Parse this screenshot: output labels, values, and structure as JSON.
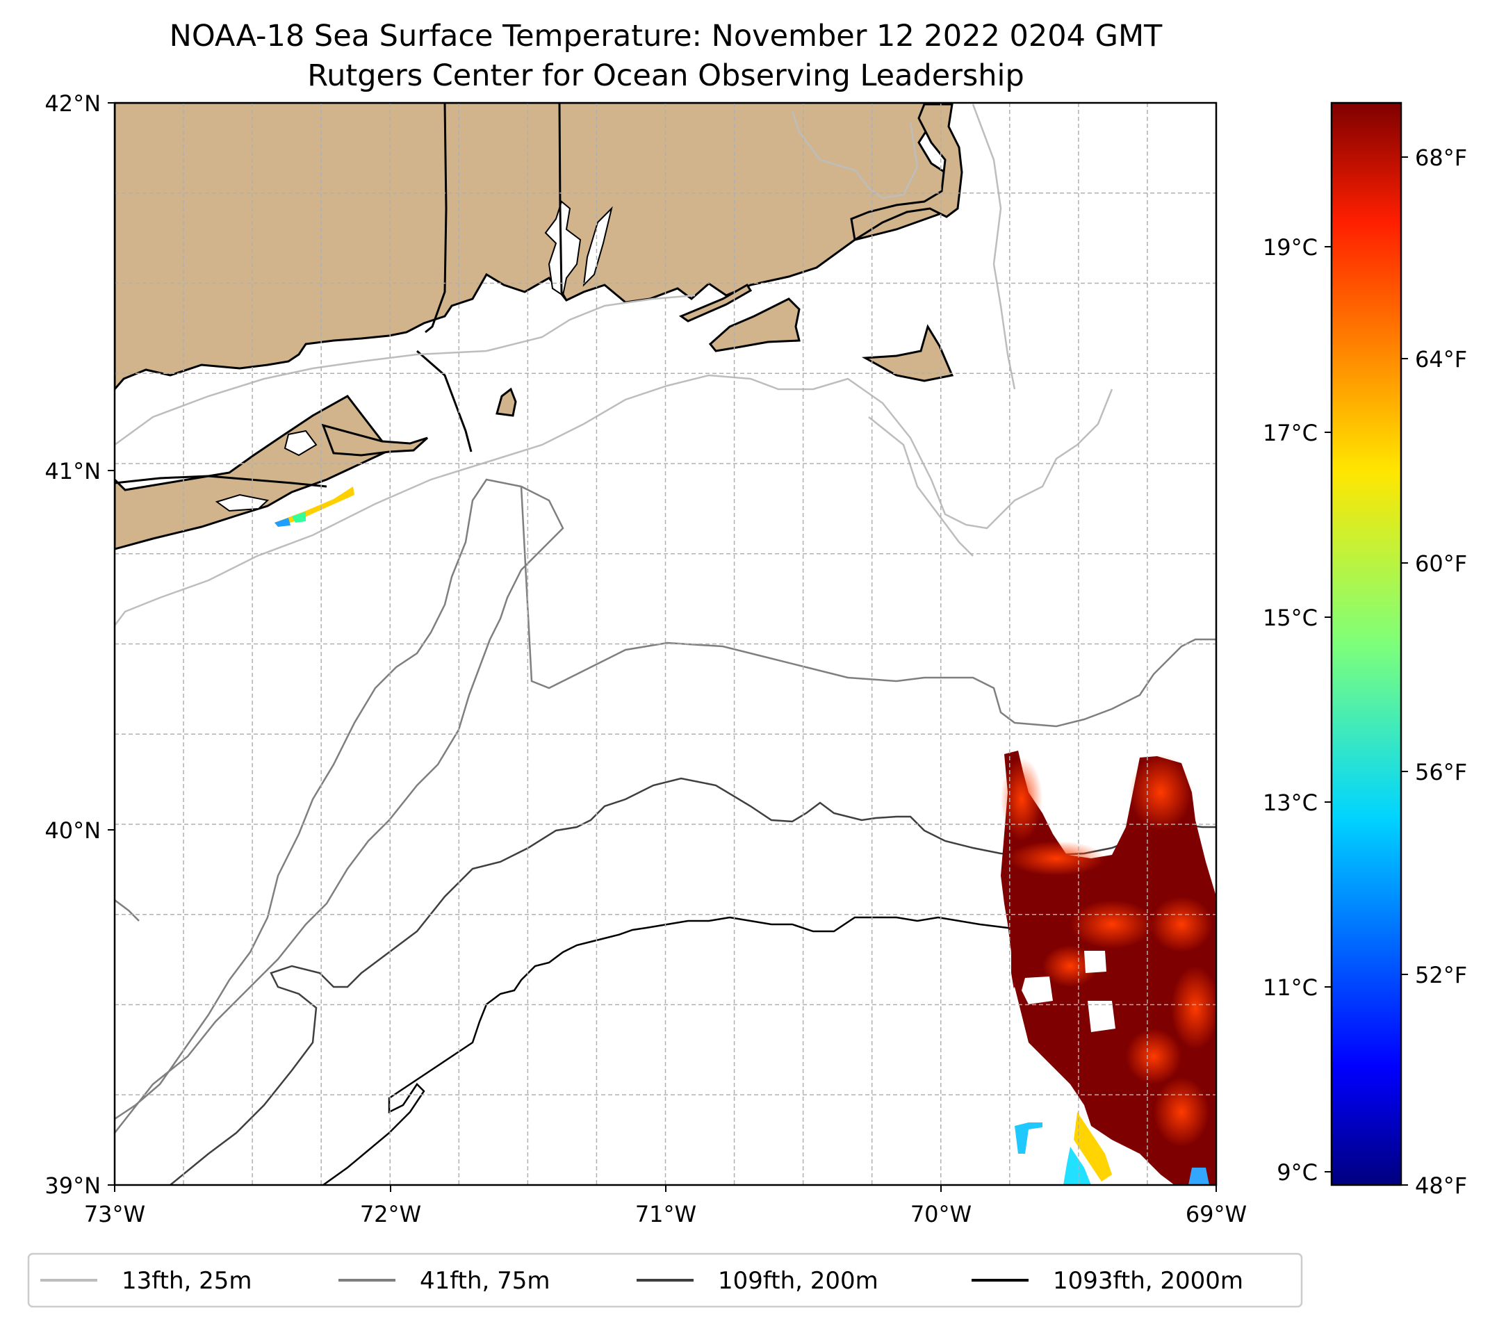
{
  "title": {
    "line1": "NOAA-18 Sea Surface Temperature: November 12 2022 0204 GMT",
    "line2": "Rutgers Center for Ocean Observing Leadership"
  },
  "map": {
    "lat_ticks": [
      "42°N",
      "41°N",
      "40°N",
      "39°N"
    ],
    "lon_ticks": [
      "73°W",
      "72°W",
      "71°W",
      "70°W",
      "69°W"
    ],
    "lat_range": [
      39,
      42
    ],
    "lon_range": [
      -73,
      -69
    ],
    "gridlines": "dashed, every 0.25°",
    "land_color": "#d2b48c",
    "ocean_color": "#ffffff"
  },
  "colorbar": {
    "colormap": "jet",
    "celsius_ticks": [
      "19°C",
      "17°C",
      "15°C",
      "13°C",
      "11°C",
      "9°C"
    ],
    "fahrenheit_ticks": [
      "68°F",
      "64°F",
      "60°F",
      "56°F",
      "52°F",
      "48°F"
    ],
    "range_f": [
      48,
      70
    ]
  },
  "legend": {
    "placement": "bottom",
    "items": [
      {
        "label": "13fth, 25m",
        "color": "#bdbdbd"
      },
      {
        "label": "41fth, 75m",
        "color": "#7f7f7f"
      },
      {
        "label": "109fth, 200m",
        "color": "#3f3f3f"
      },
      {
        "label": "1093fth, 2000m",
        "color": "#000000"
      }
    ]
  }
}
